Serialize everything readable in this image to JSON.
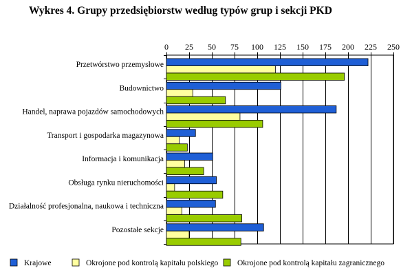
{
  "title": "Wykres 4. Grupy przedsiębiorstw według typów grup i sekcji PKD",
  "chart_data": {
    "type": "bar",
    "orientation": "horizontal",
    "title": "Wykres 4. Grupy przedsiębiorstw według typów grup i sekcji PKD",
    "xlabel": "",
    "ylabel": "",
    "xlim": [
      0,
      250
    ],
    "x_ticks": [
      0,
      25,
      50,
      75,
      100,
      125,
      150,
      175,
      200,
      225,
      250
    ],
    "x_axis_position": "top",
    "grid": true,
    "legend_position": "bottom",
    "categories": [
      "Przetwórstwo przemysłowe",
      "Budownictwo",
      "Handel, naprawa pojazdów samochodowych",
      "Transport i gospodarka magazynowa",
      "Informacja i komunikacja",
      "Obsługa rynku nieruchomości",
      "Działalność profesjonalna, naukowa i techniczna",
      "Pozostałe sekcje"
    ],
    "series": [
      {
        "name": "Krajowe",
        "color": "#1f5fd6",
        "values": [
          222,
          126,
          187,
          32,
          51,
          55,
          54,
          107
        ]
      },
      {
        "name": "Okrojone pod kontrolą kapitału polskiego",
        "color": "#ffffa0",
        "values": [
          120,
          29,
          81,
          14,
          20,
          9,
          17,
          25
        ]
      },
      {
        "name": "Okrojone pod kontrolą kapitału zagranicznego",
        "color": "#99cc00",
        "values": [
          196,
          65,
          106,
          23,
          41,
          62,
          83,
          82
        ]
      }
    ]
  }
}
